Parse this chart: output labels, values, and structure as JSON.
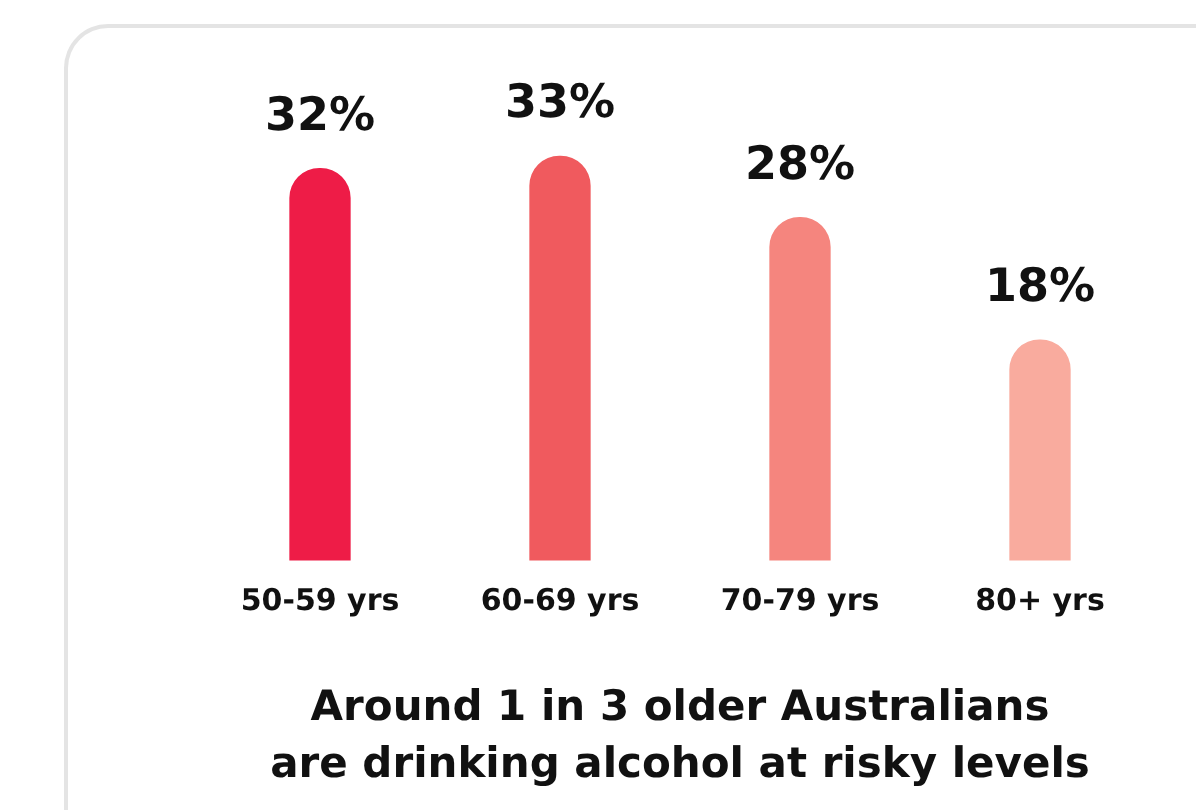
{
  "chart_data": {
    "type": "bar",
    "title": "Around 1 in 3 older Australians\nare drinking alcohol at risky levels",
    "categories": [
      "50-59 yrs",
      "60-69 yrs",
      "70-79 yrs",
      "80+ yrs"
    ],
    "values": [
      32,
      33,
      28,
      18
    ],
    "colors": [
      "#ee1c47",
      "#f05a5e",
      "#f5857e",
      "#f9ab9e"
    ],
    "value_labels": [
      "32%",
      "33%",
      "28%",
      "18%"
    ],
    "tick_labels": "x",
    "grid": false,
    "legend": false
  }
}
